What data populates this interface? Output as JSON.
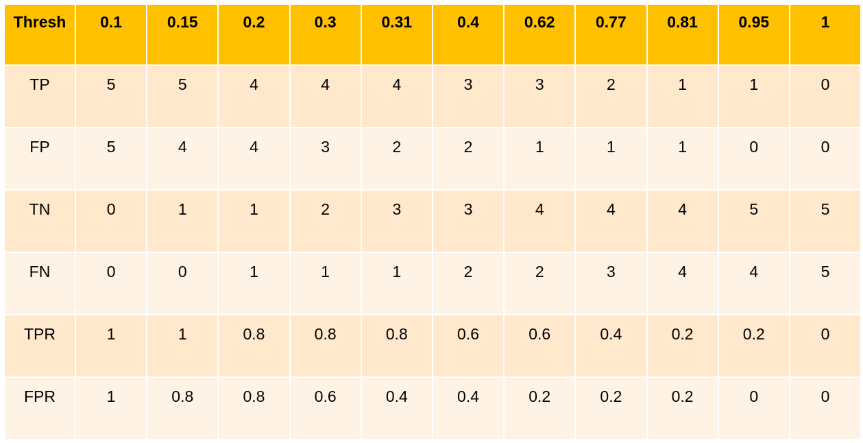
{
  "chart_data": {
    "type": "table",
    "header": {
      "label": "Thresh",
      "columns": [
        "0.1",
        "0.15",
        "0.2",
        "0.3",
        "0.31",
        "0.4",
        "0.62",
        "0.77",
        "0.81",
        "0.95",
        "1"
      ]
    },
    "rows": [
      {
        "label": "TP",
        "values": [
          "5",
          "5",
          "4",
          "4",
          "4",
          "3",
          "3",
          "2",
          "1",
          "1",
          "0"
        ]
      },
      {
        "label": "FP",
        "values": [
          "5",
          "4",
          "4",
          "3",
          "2",
          "2",
          "1",
          "1",
          "1",
          "0",
          "0"
        ]
      },
      {
        "label": "TN",
        "values": [
          "0",
          "1",
          "1",
          "2",
          "3",
          "3",
          "4",
          "4",
          "4",
          "5",
          "5"
        ]
      },
      {
        "label": "FN",
        "values": [
          "0",
          "0",
          "1",
          "1",
          "1",
          "2",
          "2",
          "3",
          "4",
          "4",
          "5"
        ]
      },
      {
        "label": "TPR",
        "values": [
          "1",
          "1",
          "0.8",
          "0.8",
          "0.8",
          "0.6",
          "0.6",
          "0.4",
          "0.2",
          "0.2",
          "0"
        ]
      },
      {
        "label": "FPR",
        "values": [
          "1",
          "0.8",
          "0.8",
          "0.6",
          "0.4",
          "0.4",
          "0.2",
          "0.2",
          "0.2",
          "0",
          "0"
        ]
      }
    ]
  },
  "colors": {
    "header_bg": "#ffc000",
    "row_band_dark": "#ffe8cc",
    "row_band_light": "#fff3e6",
    "grid_line": "#ffffff"
  }
}
